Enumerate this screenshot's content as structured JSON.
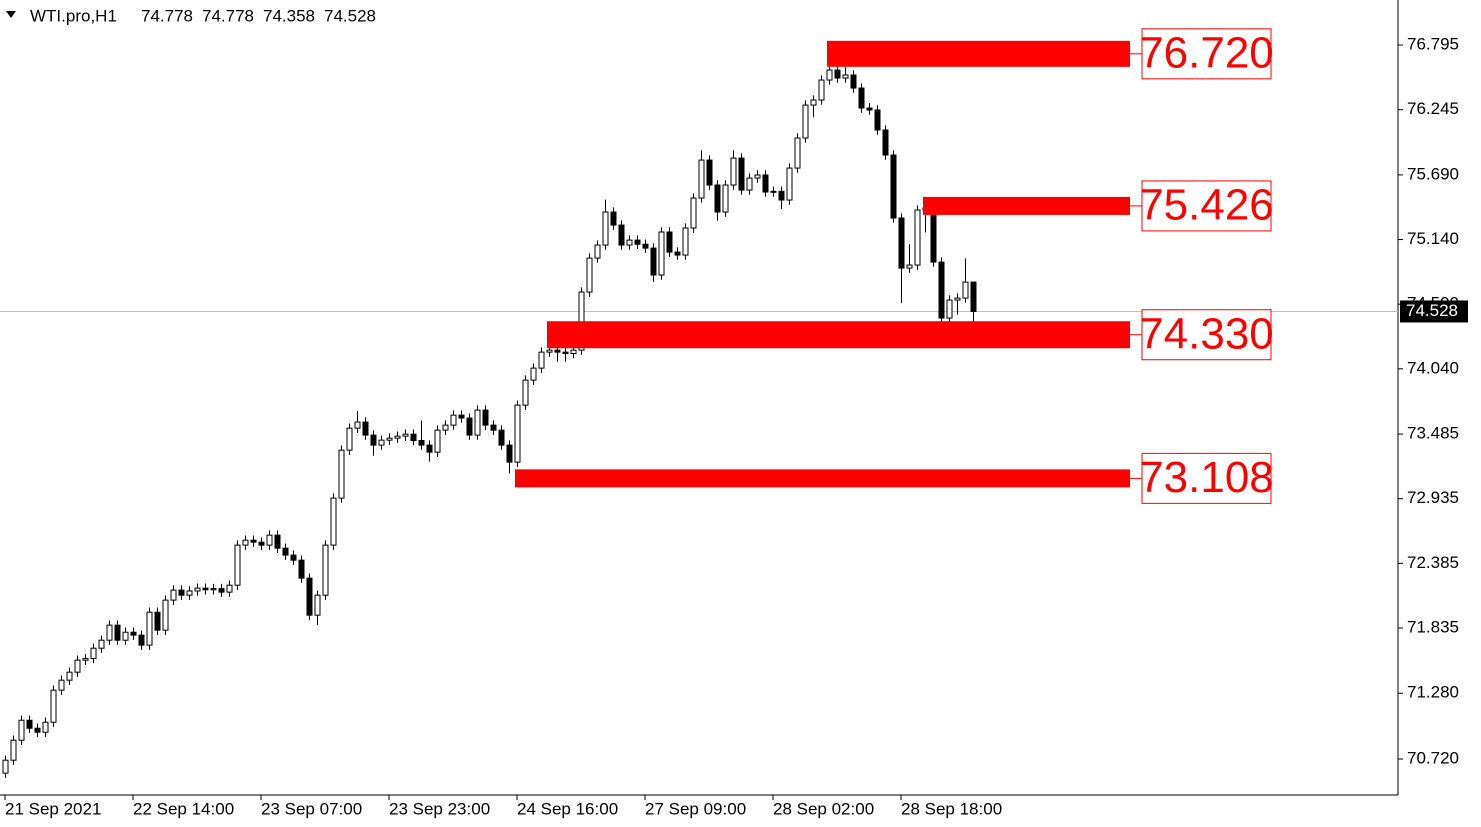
{
  "chart_data": {
    "type": "candlestick",
    "title": "WTI.pro,H1",
    "categories": [
      "21 Sep 2021",
      null,
      null,
      null,
      null,
      null,
      null,
      null,
      null,
      null,
      null,
      null,
      null,
      null,
      null,
      null,
      "22 Sep 14:00",
      null,
      null,
      null,
      null,
      null,
      null,
      null,
      null,
      null,
      null,
      null,
      null,
      null,
      null,
      null,
      "23 Sep 07:00",
      null,
      null,
      null,
      null,
      null,
      null,
      null,
      null,
      null,
      null,
      null,
      null,
      null,
      null,
      null,
      "23 Sep 23:00",
      null,
      null,
      null,
      null,
      null,
      null,
      null,
      null,
      null,
      null,
      null,
      null,
      null,
      null,
      null,
      "24 Sep 16:00",
      null,
      null,
      null,
      null,
      null,
      null,
      null,
      null,
      null,
      null,
      null,
      null,
      null,
      null,
      null,
      "27 Sep 09:00",
      null,
      null,
      null,
      null,
      null,
      null,
      null,
      null,
      null,
      null,
      null,
      null,
      null,
      null,
      null,
      "28 Sep 02:00",
      null,
      null,
      null,
      null,
      null,
      null,
      null,
      null,
      null,
      null,
      null,
      null,
      null,
      null,
      null,
      "28 Sep 18:00",
      null,
      null,
      null,
      null,
      null,
      null,
      null,
      null,
      null
    ],
    "open": [
      70.6,
      70.71,
      70.88,
      71.05,
      70.982,
      70.948,
      71.033,
      71.306,
      71.391,
      71.459,
      71.561,
      71.575,
      71.663,
      71.731,
      71.859,
      71.731,
      71.799,
      71.774,
      71.689,
      71.969,
      71.816,
      72.072,
      72.157,
      72.114,
      72.15,
      72.174,
      72.16,
      72.17,
      72.14,
      72.199,
      72.54,
      72.582,
      72.565,
      72.54,
      72.625,
      72.514,
      72.455,
      72.412,
      72.259,
      71.944,
      72.114,
      72.54,
      72.94,
      73.348,
      73.535,
      73.587,
      73.476,
      73.391,
      73.433,
      73.45,
      73.467,
      73.484,
      73.43,
      73.391,
      73.331,
      73.518,
      73.561,
      73.646,
      73.621,
      73.476,
      73.689,
      73.561,
      73.518,
      73.391,
      73.246,
      73.731,
      73.944,
      74.046,
      74.182,
      74.199,
      74.182,
      74.17,
      74.199,
      74.693,
      74.982,
      75.093,
      75.374,
      75.263,
      75.093,
      75.135,
      75.1,
      75.067,
      74.838,
      75.204,
      75.033,
      75.008,
      75.238,
      75.493,
      75.816,
      75.604,
      75.374,
      75.604,
      75.833,
      75.561,
      75.663,
      75.689,
      75.544,
      75.55,
      75.476,
      75.748,
      76.004,
      76.284,
      76.327,
      76.497,
      76.582,
      76.514,
      76.54,
      76.429,
      76.259,
      76.242,
      76.072,
      75.859,
      75.323,
      74.897,
      74.923,
      75.391,
      75.408,
      74.948,
      74.472,
      74.625,
      74.642,
      74.778
    ],
    "high": [
      70.75,
      70.92,
      71.09,
      71.09,
      71.022,
      71.073,
      71.346,
      71.431,
      71.499,
      71.601,
      71.615,
      71.703,
      71.771,
      71.899,
      71.899,
      71.839,
      71.839,
      71.814,
      72.009,
      72.009,
      72.112,
      72.197,
      72.197,
      72.19,
      72.214,
      72.214,
      72.21,
      72.21,
      72.239,
      72.58,
      72.622,
      72.622,
      72.605,
      72.665,
      72.665,
      72.554,
      72.495,
      72.452,
      72.299,
      72.154,
      72.58,
      72.98,
      73.388,
      73.575,
      73.68,
      73.627,
      73.516,
      73.473,
      73.49,
      73.507,
      73.524,
      73.524,
      73.6,
      73.431,
      73.558,
      73.601,
      73.686,
      73.686,
      73.661,
      73.729,
      73.729,
      73.601,
      73.558,
      73.431,
      73.771,
      73.984,
      74.086,
      74.222,
      74.239,
      74.239,
      74.222,
      74.239,
      74.733,
      75.022,
      75.133,
      75.48,
      75.414,
      75.303,
      75.175,
      75.175,
      75.14,
      75.107,
      75.244,
      75.244,
      75.073,
      75.278,
      75.533,
      75.9,
      75.856,
      75.644,
      75.644,
      75.9,
      75.873,
      75.703,
      75.729,
      75.729,
      75.59,
      75.59,
      75.788,
      76.044,
      76.324,
      76.367,
      76.537,
      76.64,
      76.622,
      76.61,
      76.58,
      76.469,
      76.299,
      76.282,
      76.112,
      75.899,
      75.363,
      75.1,
      75.431,
      75.448,
      75.448,
      74.988,
      74.665,
      74.682,
      74.98,
      74.778
    ],
    "low": [
      70.56,
      70.67,
      70.84,
      70.942,
      70.908,
      70.908,
      70.993,
      71.266,
      71.351,
      71.419,
      71.521,
      71.535,
      71.623,
      71.691,
      71.691,
      71.691,
      71.734,
      71.649,
      71.649,
      71.776,
      71.776,
      72.032,
      72.074,
      72.074,
      72.11,
      72.12,
      72.12,
      72.1,
      72.1,
      72.159,
      72.5,
      72.525,
      72.5,
      72.5,
      72.474,
      72.415,
      72.372,
      72.219,
      71.904,
      71.86,
      72.074,
      72.5,
      72.9,
      73.308,
      73.495,
      73.436,
      73.3,
      73.351,
      73.393,
      73.41,
      73.427,
      73.39,
      73.351,
      73.25,
      73.291,
      73.478,
      73.521,
      73.581,
      73.436,
      73.436,
      73.521,
      73.478,
      73.351,
      73.15,
      73.206,
      73.691,
      73.904,
      74.006,
      74.142,
      74.1,
      74.1,
      74.13,
      74.159,
      74.653,
      74.942,
      75.053,
      75.223,
      75.053,
      75.053,
      75.06,
      75.027,
      74.78,
      74.798,
      74.993,
      74.968,
      74.968,
      75.198,
      75.453,
      75.564,
      75.3,
      75.334,
      75.564,
      75.521,
      75.521,
      75.623,
      75.504,
      75.504,
      75.4,
      75.436,
      75.708,
      75.964,
      76.18,
      76.287,
      76.457,
      76.474,
      76.474,
      76.389,
      76.219,
      76.202,
      76.032,
      75.819,
      75.283,
      74.6,
      74.857,
      74.883,
      75.2,
      74.908,
      74.432,
      74.432,
      74.5,
      74.602,
      74.358
    ],
    "close": [
      70.71,
      70.88,
      71.05,
      70.982,
      70.948,
      71.033,
      71.306,
      71.391,
      71.459,
      71.561,
      71.575,
      71.663,
      71.731,
      71.859,
      71.731,
      71.799,
      71.774,
      71.689,
      71.969,
      71.816,
      72.072,
      72.157,
      72.114,
      72.15,
      72.174,
      72.16,
      72.17,
      72.14,
      72.199,
      72.54,
      72.582,
      72.565,
      72.54,
      72.625,
      72.514,
      72.455,
      72.412,
      72.259,
      71.944,
      72.114,
      72.54,
      72.94,
      73.348,
      73.535,
      73.587,
      73.476,
      73.391,
      73.433,
      73.45,
      73.467,
      73.484,
      73.43,
      73.391,
      73.331,
      73.518,
      73.561,
      73.646,
      73.621,
      73.476,
      73.689,
      73.561,
      73.518,
      73.391,
      73.246,
      73.731,
      73.944,
      74.046,
      74.182,
      74.199,
      74.182,
      74.17,
      74.199,
      74.693,
      74.982,
      75.093,
      75.374,
      75.263,
      75.093,
      75.135,
      75.1,
      75.067,
      74.838,
      75.204,
      75.033,
      75.008,
      75.238,
      75.493,
      75.816,
      75.604,
      75.374,
      75.604,
      75.833,
      75.561,
      75.663,
      75.689,
      75.544,
      75.55,
      75.476,
      75.748,
      76.004,
      76.284,
      76.327,
      76.497,
      76.582,
      76.514,
      76.54,
      76.429,
      76.259,
      76.242,
      76.072,
      75.859,
      75.323,
      74.897,
      74.923,
      75.391,
      75.408,
      74.948,
      74.472,
      74.625,
      74.642,
      74.778,
      74.528
    ],
    "up_color": "#ffffff",
    "down_color": "#000000",
    "ylim": [
      70.414,
      77.178
    ],
    "yticks": [
      76.795,
      76.245,
      {
        "value": 75.69,
        "label": "75.690"
      },
      {
        "value": 75.14,
        "label": "75.140"
      },
      {
        "value": 74.59,
        "label": "74.590"
      },
      {
        "value": 74.04,
        "label": "74.040"
      },
      73.485,
      72.935,
      72.385,
      71.835,
      {
        "value": 71.28,
        "label": "71.280"
      },
      {
        "value": 70.72,
        "label": "70.720"
      }
    ],
    "grid": false,
    "levels": [
      {
        "value": 76.72,
        "label": "76.720"
      },
      {
        "value": 75.426,
        "label": "75.426"
      },
      {
        "value": 74.33,
        "label": "74.330"
      },
      {
        "value": 73.108,
        "label": "73.108"
      }
    ],
    "level_color": "#ff0000"
  }
}
